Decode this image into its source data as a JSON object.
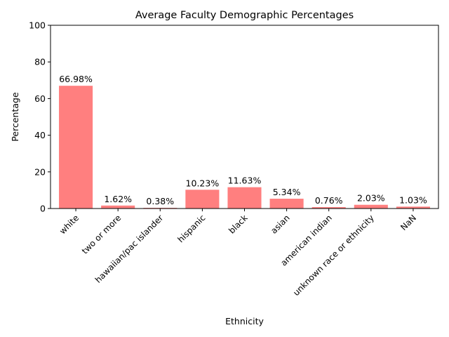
{
  "chart_data": {
    "type": "bar",
    "title": "Average Faculty Demographic Percentages",
    "xlabel": "Ethnicity",
    "ylabel": "Percentage",
    "ylim": [
      0,
      100
    ],
    "yticks": [
      0,
      20,
      40,
      60,
      80,
      100
    ],
    "categories": [
      "white",
      "two or more",
      "hawaiian/pac islander",
      "hispanic",
      "black",
      "asian",
      "american indian",
      "unknown race or ethnicity",
      "NaN"
    ],
    "values": [
      66.98,
      1.62,
      0.38,
      10.23,
      11.63,
      5.34,
      0.76,
      2.03,
      1.03
    ],
    "value_labels": [
      "66.98%",
      "1.62%",
      "0.38%",
      "10.23%",
      "11.63%",
      "5.34%",
      "0.76%",
      "2.03%",
      "1.03%"
    ],
    "bar_color": "#ff7f7f",
    "grid": false,
    "legend": "none"
  }
}
